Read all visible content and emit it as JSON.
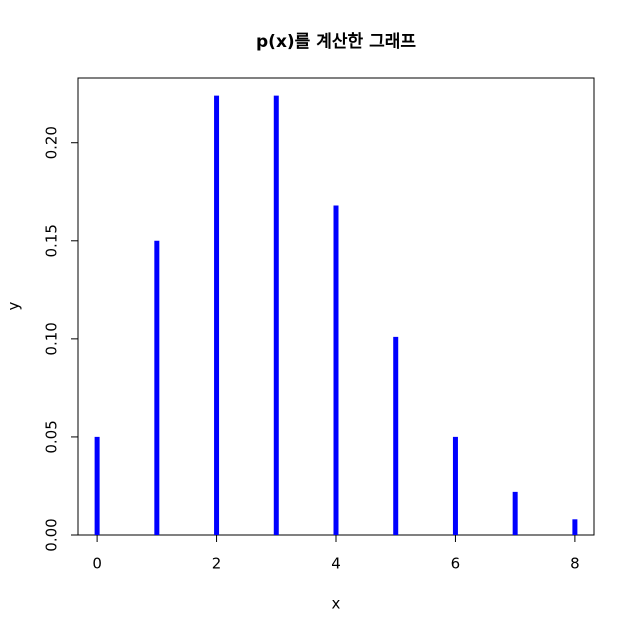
{
  "chart_data": {
    "type": "stem",
    "title": "p(x)를 계산한 그래프",
    "x_label": "x",
    "y_label": "y",
    "x": [
      0,
      1,
      2,
      3,
      4,
      5,
      6,
      7,
      8
    ],
    "values": [
      0.05,
      0.15,
      0.224,
      0.224,
      0.168,
      0.101,
      0.05,
      0.022,
      0.008
    ],
    "color": "#0000ff",
    "xlim": [
      -0.32,
      8.32
    ],
    "xticks": [
      0,
      2,
      4,
      6,
      8
    ],
    "ylim": [
      0,
      0.233
    ],
    "yticks": [
      {
        "value": 0,
        "label": "0.00"
      },
      0.05,
      {
        "value": 0.1,
        "label": "0.10"
      },
      0.15,
      {
        "value": 0.2,
        "label": "0.20"
      }
    ],
    "grid": false
  }
}
